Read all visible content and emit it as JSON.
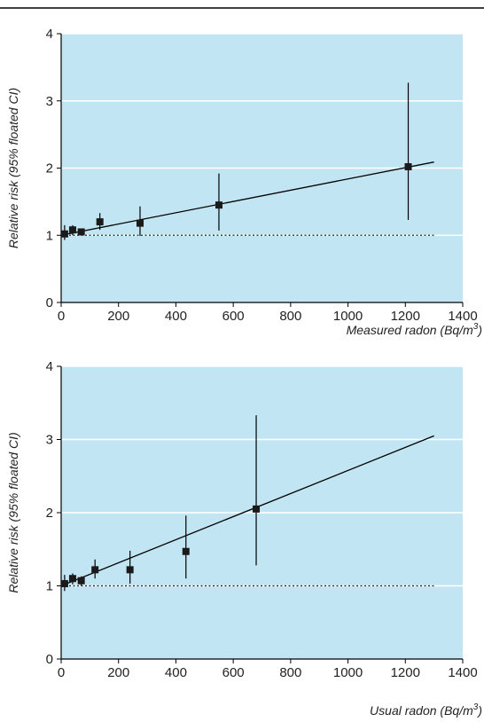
{
  "chart_data": [
    {
      "type": "scatter",
      "xlabel": "Measured radon (Bq/m³)",
      "xlabel_main": "Measured radon (Bq/m",
      "xlabel_sup": "3",
      "xlabel_end": ")",
      "ylabel": "Relative risk (95% floated CI)",
      "xlim": [
        0,
        1400
      ],
      "ylim": [
        0,
        4
      ],
      "xticks": [
        "0",
        "200",
        "400",
        "600",
        "800",
        "1000",
        "1200",
        "1400"
      ],
      "xtick_values": [
        0,
        200,
        400,
        600,
        800,
        1000,
        1200,
        1400
      ],
      "yticks": [
        "0",
        "1",
        "2",
        "3",
        "4"
      ],
      "ytick_values": [
        0,
        1,
        2,
        3,
        4
      ],
      "grid": "horizontal",
      "background": "#c2e5f3",
      "points": [
        {
          "x": 12,
          "y": 1.02,
          "lo": 0.93,
          "hi": 1.15
        },
        {
          "x": 40,
          "y": 1.08,
          "lo": 1.0,
          "hi": 1.15
        },
        {
          "x": 70,
          "y": 1.05,
          "lo": 1.0,
          "hi": 1.1
        },
        {
          "x": 135,
          "y": 1.2,
          "lo": 1.08,
          "hi": 1.33
        },
        {
          "x": 275,
          "y": 1.18,
          "lo": 0.99,
          "hi": 1.43
        },
        {
          "x": 550,
          "y": 1.45,
          "lo": 1.07,
          "hi": 1.92
        },
        {
          "x": 1210,
          "y": 2.02,
          "lo": 1.23,
          "hi": 3.27
        }
      ],
      "fit_line": {
        "x": [
          0,
          1300
        ],
        "y": [
          1.0,
          2.09
        ]
      },
      "reference_line": {
        "y": 1,
        "style": "dotted"
      }
    },
    {
      "type": "scatter",
      "xlabel": "Usual radon (Bq/m³)",
      "xlabel_main": "Usual radon (Bq/m",
      "xlabel_sup": "3",
      "xlabel_end": ")",
      "ylabel": "Relative risk (95% floated CI)",
      "xlim": [
        0,
        1400
      ],
      "ylim": [
        0,
        4
      ],
      "xticks": [
        "0",
        "200",
        "400",
        "600",
        "800",
        "1000",
        "1200",
        "1400"
      ],
      "xtick_values": [
        0,
        200,
        400,
        600,
        800,
        1000,
        1200,
        1400
      ],
      "yticks": [
        "0",
        "1",
        "2",
        "3",
        "4"
      ],
      "ytick_values": [
        0,
        1,
        2,
        3,
        4
      ],
      "grid": "horizontal",
      "background": "#c2e5f3",
      "points": [
        {
          "x": 12,
          "y": 1.03,
          "lo": 0.93,
          "hi": 1.15
        },
        {
          "x": 40,
          "y": 1.1,
          "lo": 1.02,
          "hi": 1.17
        },
        {
          "x": 70,
          "y": 1.07,
          "lo": 1.0,
          "hi": 1.13
        },
        {
          "x": 118,
          "y": 1.22,
          "lo": 1.1,
          "hi": 1.36
        },
        {
          "x": 240,
          "y": 1.22,
          "lo": 1.03,
          "hi": 1.48
        },
        {
          "x": 435,
          "y": 1.47,
          "lo": 1.1,
          "hi": 1.96
        },
        {
          "x": 680,
          "y": 2.05,
          "lo": 1.28,
          "hi": 3.33
        }
      ],
      "fit_line": {
        "x": [
          0,
          1300
        ],
        "y": [
          1.0,
          3.05
        ]
      },
      "reference_line": {
        "y": 1,
        "style": "dotted"
      }
    }
  ]
}
